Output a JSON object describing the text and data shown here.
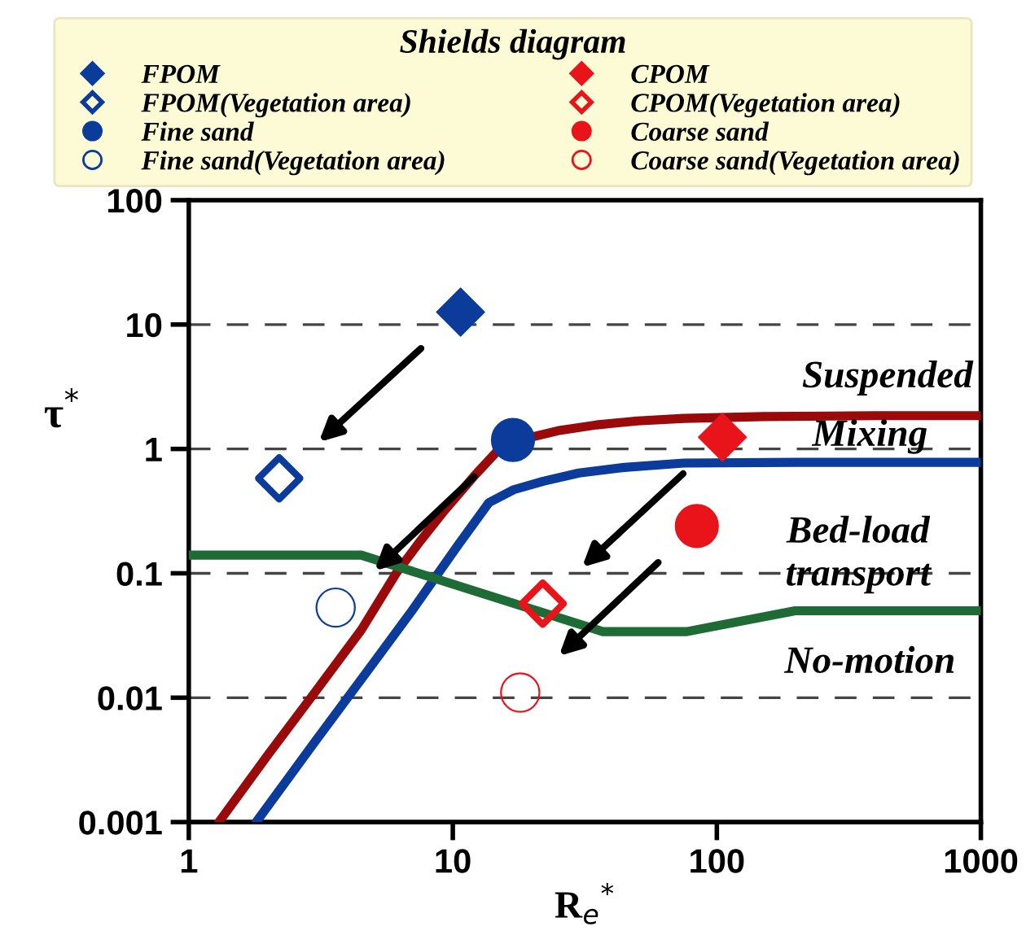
{
  "chart_data": {
    "type": "scatter",
    "legend_title": "Shields diagram",
    "xlabel": "R$_{e}$$^{*}$",
    "ylabel": "τ$^{*}$",
    "log": "xy",
    "xlim": [
      1,
      1000
    ],
    "ylim": [
      0.001,
      100
    ],
    "xticks": [
      1,
      10,
      100,
      1000
    ],
    "yticks": [
      0.001,
      0.01,
      0.1,
      1,
      10,
      100
    ],
    "grid": "y",
    "legend": "top",
    "annotations": [
      "Suspended",
      "Mixing",
      "Bed-load\ntransport",
      "No-motion"
    ],
    "series": [
      {
        "name": "FPOM",
        "marker": "diamond",
        "color": "#0b3c9c",
        "x": [
          10.7
        ],
        "values": [
          12.6
        ]
      },
      {
        "name": "FPOM(Vegetation area)",
        "marker": "diamond",
        "color": "#0b3c9c",
        "x": [
          2.2
        ],
        "values": [
          0.58
        ]
      },
      {
        "name": "Fine sand",
        "marker": "circle",
        "color": "#0b3c9c",
        "x": [
          16.9
        ],
        "values": [
          1.18
        ]
      },
      {
        "name": "Fine sand(Vegetation area)",
        "marker": "circle",
        "color": "#0b3c9c",
        "x": [
          3.6
        ],
        "values": [
          0.053
        ]
      },
      {
        "name": "CPOM",
        "marker": "diamond",
        "color": "#e8141a",
        "x": [
          105
        ],
        "values": [
          1.24
        ]
      },
      {
        "name": "CPOM(Vegetation area)",
        "marker": "diamond",
        "color": "#e8141a",
        "x": [
          21.9
        ],
        "values": [
          0.057
        ]
      },
      {
        "name": "Coarse sand",
        "marker": "circle",
        "color": "#e8141a",
        "x": [
          84
        ],
        "values": [
          0.24
        ]
      },
      {
        "name": "Coarse sand(Vegetation area)",
        "marker": "circle",
        "color": "#e8141a",
        "x": [
          18
        ],
        "values": [
          0.011
        ]
      },
      {
        "type": "line",
        "color": "#9b0a0a",
        "x": [
          1.3,
          2,
          3,
          4.5,
          6.1,
          7.5,
          9.3,
          12,
          15,
          20,
          25,
          35,
          50,
          75,
          150,
          400,
          1000
        ],
        "values": [
          0.001,
          0.0035,
          0.011,
          0.035,
          0.1,
          0.18,
          0.32,
          0.6,
          1.0,
          1.25,
          1.4,
          1.56,
          1.68,
          1.76,
          1.82,
          1.85,
          1.85
        ]
      },
      {
        "type": "line",
        "color": "#0b3c9c",
        "x": [
          1.8,
          3,
          5,
          7,
          8.5,
          10.5,
          13.7,
          17,
          22,
          30,
          44.6,
          75,
          200,
          1000
        ],
        "values": [
          0.001,
          0.0044,
          0.019,
          0.05,
          0.09,
          0.17,
          0.37,
          0.47,
          0.55,
          0.64,
          0.71,
          0.77,
          0.78,
          0.78
        ]
      },
      {
        "type": "line",
        "color": "#1e6b35",
        "x": [
          1,
          4.5,
          37,
          77,
          198,
          1000
        ],
        "values": [
          0.14,
          0.14,
          0.034,
          0.034,
          0.05,
          0.05
        ]
      }
    ]
  }
}
